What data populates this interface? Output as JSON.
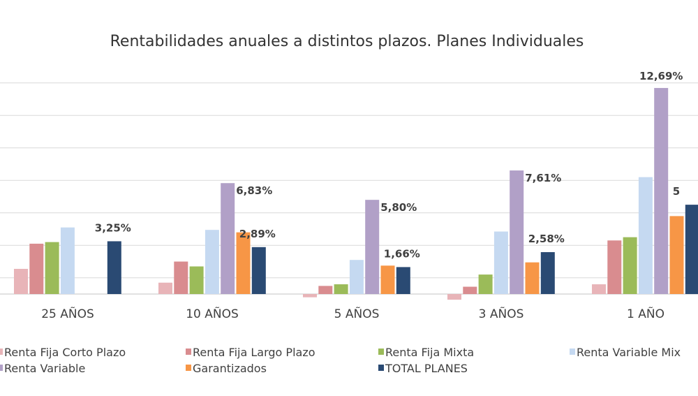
{
  "chart_data": {
    "type": "bar",
    "title": "Rentabilidades anuales a distintos plazos. Planes Individuales",
    "xlabel": "",
    "ylabel": "",
    "ylim": [
      -1,
      13
    ],
    "grid": true,
    "gridlines": [
      1,
      3,
      5,
      7,
      9,
      11,
      13
    ],
    "legend_position": "bottom",
    "categories": [
      "25 AÑOS",
      "10 AÑOS",
      "5 AÑOS",
      "3 AÑOS",
      "1 AÑO"
    ],
    "series": [
      {
        "name": "Renta Fija Corto Plazo",
        "color": "#e8b4b8",
        "values": [
          1.55,
          0.7,
          -0.2,
          -0.35,
          0.6
        ],
        "labels": [
          null,
          null,
          null,
          null,
          null
        ]
      },
      {
        "name": "Renta Fija Largo Plazo",
        "color": "#d98c8f",
        "values": [
          3.1,
          2.0,
          0.5,
          0.45,
          3.3
        ],
        "labels": [
          null,
          null,
          null,
          null,
          null
        ]
      },
      {
        "name": "Renta Fija Mixta",
        "color": "#9bbb59",
        "values": [
          3.2,
          1.7,
          0.6,
          1.2,
          3.5
        ],
        "labels": [
          null,
          null,
          null,
          null,
          null
        ]
      },
      {
        "name": "Renta Variable Mix",
        "color": "#c5d9f1",
        "values": [
          4.1,
          3.95,
          2.1,
          3.85,
          7.2
        ],
        "labels": [
          null,
          null,
          null,
          null,
          null
        ]
      },
      {
        "name": "Renta Variable",
        "color": "#b1a0c7",
        "values": [
          null,
          6.83,
          5.8,
          7.61,
          12.69
        ],
        "labels": [
          null,
          "6,83%",
          "5,80%",
          "7,61%",
          "12,69%"
        ]
      },
      {
        "name": "Garantizados",
        "color": "#f79646",
        "values": [
          null,
          3.8,
          1.75,
          1.95,
          4.8
        ],
        "labels": [
          null,
          null,
          null,
          null,
          null
        ]
      },
      {
        "name": "TOTAL PLANES",
        "color": "#2a4a73",
        "values": [
          3.25,
          2.89,
          1.66,
          2.58,
          5.5
        ],
        "labels": [
          "3,25%",
          "2,89%",
          "1,66%",
          "2,58%",
          "5"
        ]
      }
    ]
  }
}
